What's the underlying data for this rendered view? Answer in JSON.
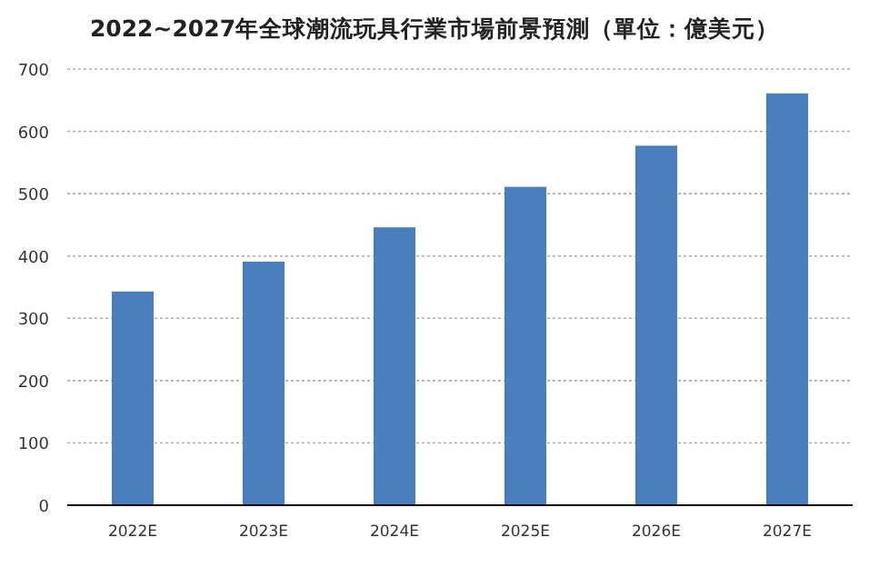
{
  "chart_data": {
    "type": "bar",
    "title": "2022~2027年全球潮流玩具行業市場前景預測（單位：億美元）",
    "categories": [
      "2022E",
      "2023E",
      "2024E",
      "2025E",
      "2026E",
      "2027E"
    ],
    "values": [
      343,
      391,
      446,
      511,
      577,
      661
    ],
    "color": "#4a7ebf",
    "ylim": [
      0,
      700
    ],
    "yticks": [
      0,
      100,
      200,
      300,
      400,
      500,
      600,
      700
    ],
    "grid": "y"
  }
}
